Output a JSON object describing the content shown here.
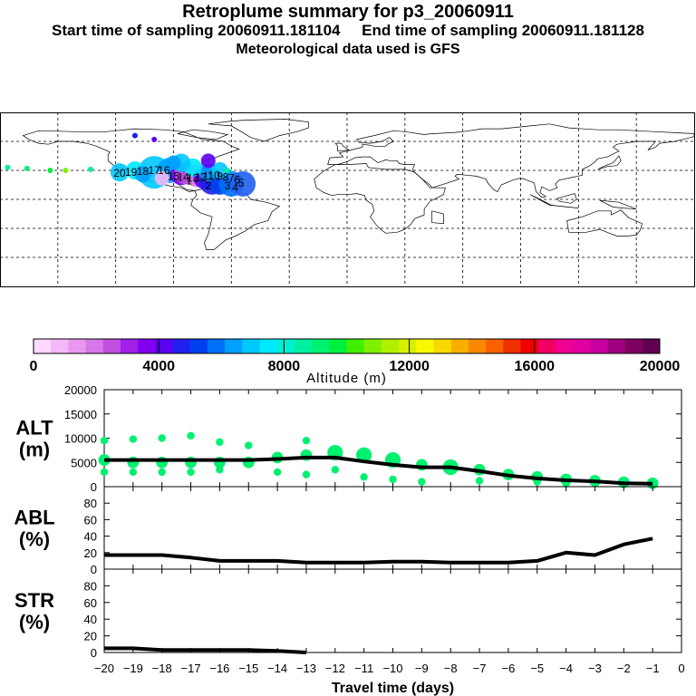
{
  "header": {
    "title": "Retroplume summary for p3_20060911",
    "subtitle": "Start time of sampling 20060911.181104     End time of sampling 20060911.181128",
    "met_line": "Meteorological data used is GFS"
  },
  "colorbar": {
    "colors": [
      "#ffd8ff",
      "#f4b8f8",
      "#e898f0",
      "#d878e8",
      "#c050e0",
      "#a020e8",
      "#8000f0",
      "#5a00f0",
      "#2020f0",
      "#0040f0",
      "#0070f8",
      "#00a0ff",
      "#00c8ff",
      "#00e8ff",
      "#00f0d0",
      "#00f0a0",
      "#00f070",
      "#00f040",
      "#40f000",
      "#80f000",
      "#b0f000",
      "#d8f000",
      "#f8f800",
      "#f8d800",
      "#f8b000",
      "#f88800",
      "#f86000",
      "#f03000",
      "#f00000",
      "#f00060",
      "#f00090",
      "#e000a0",
      "#c800a0",
      "#a00080",
      "#800060",
      "#600050"
    ],
    "tick_labels": [
      "0",
      "4000",
      "8000",
      "12000",
      "16000",
      "20000"
    ],
    "label": "Altitude (m)"
  },
  "map": {
    "plume_labels": [
      "20",
      "19",
      "18",
      "17",
      "16",
      "15",
      "14",
      "13",
      "12",
      "11",
      "10",
      "9",
      "8",
      "7",
      "6",
      "5",
      "4",
      "3",
      "2",
      "1"
    ]
  },
  "chart_data": [
    {
      "type": "line",
      "name": "ALT",
      "ylabel": "ALT\n(m)",
      "ylabel_lines": [
        "ALT",
        "(m)"
      ],
      "ylim": [
        0,
        20000
      ],
      "yticks": [
        0,
        5000,
        10000,
        15000,
        20000
      ],
      "ytick_labels": [
        "0",
        "5000",
        "10000",
        "15000",
        "20000"
      ],
      "x": [
        -20,
        -19,
        -18,
        -17,
        -16,
        -15,
        -14,
        -13,
        -12,
        -11,
        -10,
        -9,
        -8,
        -7,
        -6,
        -5,
        -4,
        -3,
        -2,
        -1
      ],
      "values": [
        5500,
        5500,
        5500,
        5500,
        5500,
        5500,
        5700,
        6000,
        6000,
        5200,
        4500,
        4000,
        4000,
        3200,
        2300,
        1700,
        1300,
        1100,
        700,
        600
      ],
      "scatter": [
        {
          "x": -20,
          "y": 5500,
          "s": 2
        },
        {
          "x": -20,
          "y": 9500,
          "s": 1
        },
        {
          "x": -20,
          "y": 3000,
          "s": 1
        },
        {
          "x": -19,
          "y": 5000,
          "s": 2
        },
        {
          "x": -19,
          "y": 9800,
          "s": 1
        },
        {
          "x": -19,
          "y": 3000,
          "s": 1
        },
        {
          "x": -18,
          "y": 5000,
          "s": 2
        },
        {
          "x": -18,
          "y": 10000,
          "s": 1
        },
        {
          "x": -18,
          "y": 3000,
          "s": 1
        },
        {
          "x": -17,
          "y": 5000,
          "s": 2
        },
        {
          "x": -17,
          "y": 10500,
          "s": 1
        },
        {
          "x": -17,
          "y": 3000,
          "s": 1
        },
        {
          "x": -16,
          "y": 5000,
          "s": 2
        },
        {
          "x": -16,
          "y": 9200,
          "s": 1
        },
        {
          "x": -16,
          "y": 3500,
          "s": 1
        },
        {
          "x": -15,
          "y": 5000,
          "s": 2
        },
        {
          "x": -15,
          "y": 8500,
          "s": 1
        },
        {
          "x": -14,
          "y": 6000,
          "s": 2
        },
        {
          "x": -14,
          "y": 3000,
          "s": 1
        },
        {
          "x": -13,
          "y": 6500,
          "s": 2
        },
        {
          "x": -13,
          "y": 9500,
          "s": 1
        },
        {
          "x": -13,
          "y": 2500,
          "s": 1
        },
        {
          "x": -12,
          "y": 7000,
          "s": 3
        },
        {
          "x": -12,
          "y": 3500,
          "s": 1
        },
        {
          "x": -11,
          "y": 6500,
          "s": 3
        },
        {
          "x": -11,
          "y": 2000,
          "s": 1
        },
        {
          "x": -10,
          "y": 5500,
          "s": 3
        },
        {
          "x": -10,
          "y": 1500,
          "s": 1
        },
        {
          "x": -9,
          "y": 4500,
          "s": 2
        },
        {
          "x": -9,
          "y": 1000,
          "s": 1
        },
        {
          "x": -8,
          "y": 4000,
          "s": 3
        },
        {
          "x": -7,
          "y": 3500,
          "s": 2
        },
        {
          "x": -7,
          "y": 1200,
          "s": 1
        },
        {
          "x": -6,
          "y": 2500,
          "s": 2
        },
        {
          "x": -5,
          "y": 2000,
          "s": 2
        },
        {
          "x": -5,
          "y": 1000,
          "s": 1
        },
        {
          "x": -4,
          "y": 1500,
          "s": 2
        },
        {
          "x": -4,
          "y": 600,
          "s": 1
        },
        {
          "x": -3,
          "y": 1200,
          "s": 2
        },
        {
          "x": -2,
          "y": 900,
          "s": 2
        },
        {
          "x": -1,
          "y": 700,
          "s": 2
        }
      ]
    },
    {
      "type": "line",
      "name": "ABL",
      "ylabel": "ABL\n(%)",
      "ylabel_lines": [
        "ABL",
        "(%)"
      ],
      "ylim": [
        0,
        100
      ],
      "yticks": [
        0,
        20,
        40,
        60,
        80
      ],
      "ytick_labels": [
        "0",
        "20",
        "40",
        "60",
        "80"
      ],
      "x": [
        -20,
        -19,
        -18,
        -17,
        -16,
        -15,
        -14,
        -13,
        -12,
        -11,
        -10,
        -9,
        -8,
        -7,
        -6,
        -5,
        -4,
        -3,
        -2,
        -1
      ],
      "values": [
        17,
        17,
        17,
        14,
        10,
        10,
        10,
        8,
        8,
        8,
        9,
        9,
        8,
        8,
        8,
        10,
        20,
        17,
        30,
        37
      ]
    },
    {
      "type": "line",
      "name": "STR",
      "ylabel": "STR\n(%)",
      "ylabel_lines": [
        "STR",
        "(%)"
      ],
      "ylim": [
        0,
        100
      ],
      "yticks": [
        0,
        20,
        40,
        60,
        80
      ],
      "ytick_labels": [
        "0",
        "20",
        "40",
        "60",
        "80"
      ],
      "x": [
        -20,
        -19,
        -18,
        -17,
        -16,
        -15,
        -14,
        -13
      ],
      "values": [
        5,
        5,
        3,
        3,
        3,
        3,
        2,
        0
      ],
      "xlabel": "Travel time (days)",
      "xlim": [
        -20,
        0
      ],
      "xticks": [
        -20,
        -19,
        -18,
        -17,
        -16,
        -15,
        -14,
        -13,
        -12,
        -11,
        -10,
        -9,
        -8,
        -7,
        -6,
        -5,
        -4,
        -3,
        -2,
        -1,
        0
      ],
      "xtick_labels": [
        "−20",
        "−19",
        "−18",
        "−17",
        "−16",
        "−15",
        "−14",
        "−13",
        "−12",
        "−11",
        "−10",
        "−9",
        "−8",
        "−7",
        "−6",
        "−5",
        "−4",
        "−3",
        "−2",
        "−1",
        "0"
      ]
    }
  ]
}
